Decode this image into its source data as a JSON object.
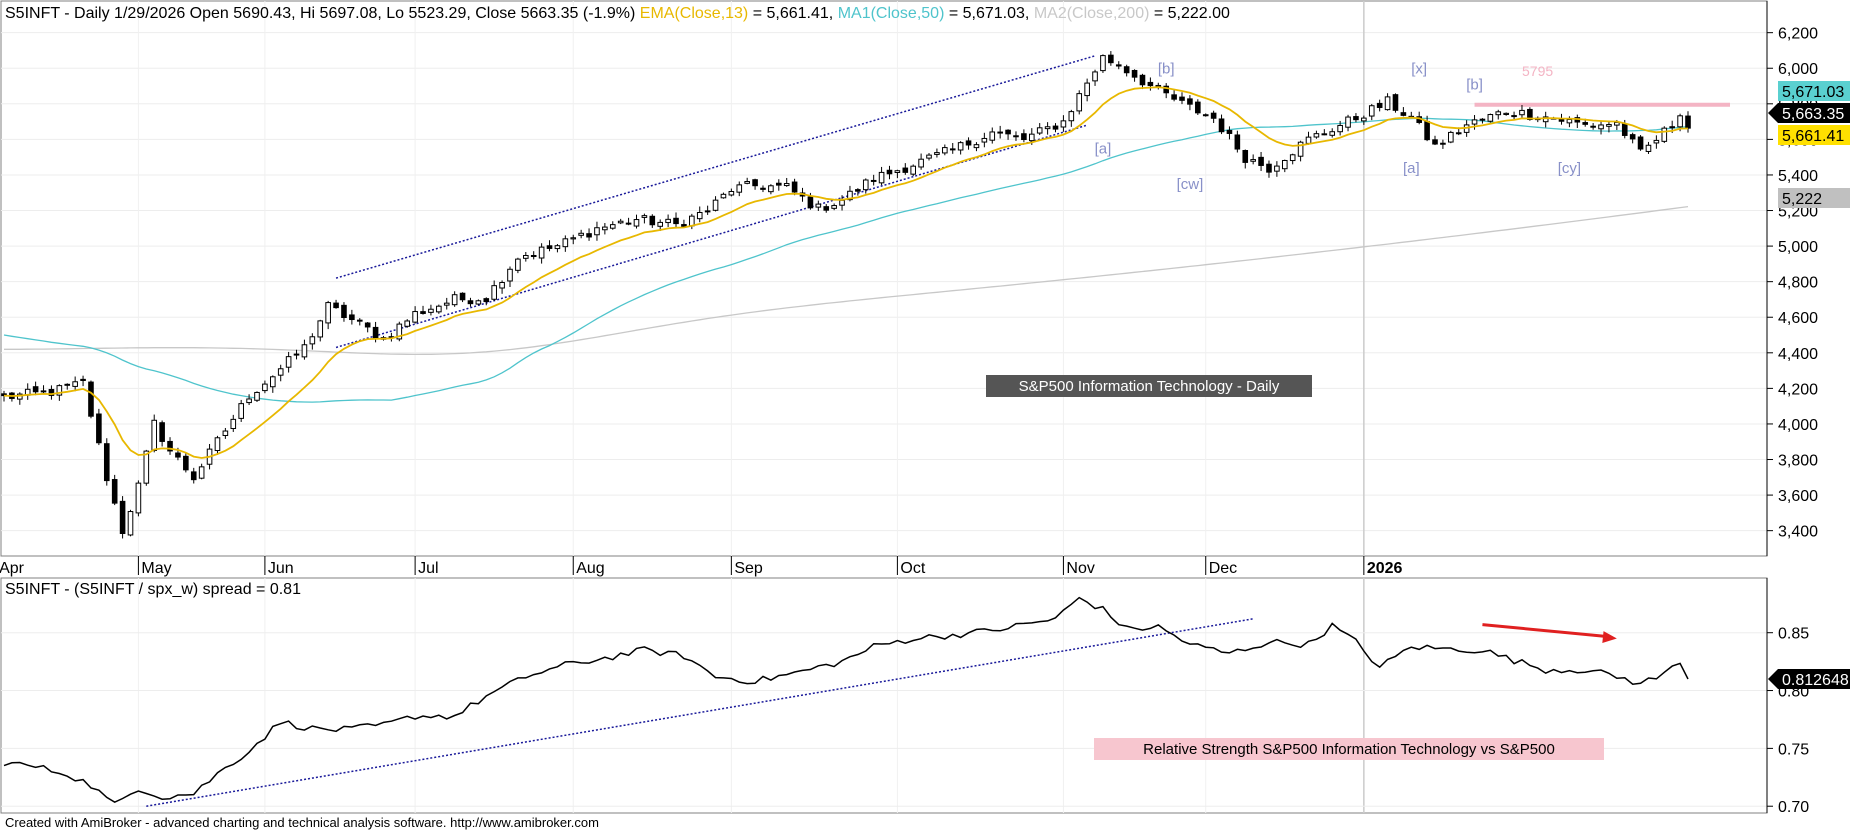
{
  "main_header": {
    "prefix": "S5INFT - Daily 1/29/2026 Open 5690.43, Hi 5697.08, Lo 5523.29, Close 5663.35 (-1.9%)",
    "ema_label": "EMA(Close,13)",
    "ema_value": " = 5,661.41,",
    "ma1_label": "MA1(Close,50)",
    "ma1_value": " = 5,671.03,",
    "ma2_label": "MA2(Close,200)",
    "ma2_value": " = 5,222.00"
  },
  "lower_header": "S5INFT - (S5INFT / spx_w) spread = 0.81",
  "main_caption": "S&P500 Information Technology - Daily",
  "lower_caption": "Relative Strength S&P500 Information Technology vs S&P500",
  "footer": "Created with AmiBroker - advanced charting and technical analysis software. http://www.amibroker.com",
  "resistance_label": "5795",
  "colors": {
    "ema": "#e8b800",
    "ma50": "#4fc4cc",
    "ma200": "#c8c8c8",
    "wave_labels": "#8890c8",
    "resistance": "#f4b4c4",
    "channel": "#1a1a9a",
    "arrow": "#e02020",
    "price_tag": "#000000",
    "ma50_tag": "#5ad0d0",
    "ema_tag": "#ffe000",
    "ma200_tag": "#c0c0c0"
  },
  "chart_data": [
    {
      "type": "candlestick",
      "title": "S&P500 Information Technology - Daily",
      "y_ticks": [
        3400,
        3600,
        3800,
        4000,
        4200,
        4400,
        4600,
        4800,
        5000,
        5200,
        5400,
        5600,
        5800,
        6000,
        6200
      ],
      "y_tick_labels": [
        "3,400",
        "3,600",
        "3,800",
        "4,000",
        "4,200",
        "4,400",
        "4,600",
        "4,800",
        "5,000",
        "5,200",
        "5,400",
        "5,600",
        "5,800",
        "6,000",
        "6,200"
      ],
      "ylim": [
        3280,
        6260
      ],
      "x_months": [
        "Apr",
        "Jun",
        "May",
        "Jul",
        "Aug",
        "Sep",
        "Oct",
        "Nov",
        "Dec",
        "2026"
      ],
      "x_month_index": [
        -1,
        33,
        17,
        52,
        72,
        92,
        113,
        134,
        152,
        172
      ],
      "days": 213,
      "close_path": [
        [
          0,
          4150
        ],
        [
          6,
          4180
        ],
        [
          10,
          4230
        ],
        [
          13,
          3700
        ],
        [
          15,
          3400
        ],
        [
          17,
          3650
        ],
        [
          19,
          4000
        ],
        [
          21,
          3850
        ],
        [
          24,
          3700
        ],
        [
          27,
          3900
        ],
        [
          31,
          4160
        ],
        [
          35,
          4310
        ],
        [
          38,
          4430
        ],
        [
          41,
          4660
        ],
        [
          45,
          4560
        ],
        [
          48,
          4480
        ],
        [
          52,
          4620
        ],
        [
          57,
          4700
        ],
        [
          61,
          4710
        ],
        [
          65,
          4940
        ],
        [
          70,
          5000
        ],
        [
          75,
          5100
        ],
        [
          80,
          5150
        ],
        [
          85,
          5120
        ],
        [
          89,
          5200
        ],
        [
          92,
          5320
        ],
        [
          95,
          5340
        ],
        [
          99,
          5330
        ],
        [
          103,
          5210
        ],
        [
          106,
          5260
        ],
        [
          110,
          5380
        ],
        [
          115,
          5460
        ],
        [
          120,
          5540
        ],
        [
          125,
          5640
        ],
        [
          129,
          5600
        ],
        [
          134,
          5700
        ],
        [
          137,
          5920
        ],
        [
          139,
          6060
        ],
        [
          141,
          6020
        ],
        [
          145,
          5900
        ],
        [
          149,
          5800
        ],
        [
          153,
          5720
        ],
        [
          157,
          5500
        ],
        [
          160,
          5440
        ],
        [
          165,
          5600
        ],
        [
          170,
          5700
        ],
        [
          175,
          5810
        ],
        [
          178,
          5720
        ],
        [
          181,
          5560
        ],
        [
          185,
          5680
        ],
        [
          190,
          5760
        ],
        [
          196,
          5720
        ],
        [
          200,
          5680
        ],
        [
          204,
          5690
        ],
        [
          207,
          5520
        ],
        [
          209,
          5600
        ],
        [
          211,
          5680
        ],
        [
          212,
          5760
        ],
        [
          213,
          5663.35
        ]
      ],
      "ema13_last": 5661.41,
      "ma50_last": 5671.03,
      "ma200_last": 5222.0,
      "ma50_start": 4500,
      "ma200_start": 4420,
      "last_close": 5663.35,
      "resistance": 5795,
      "value_tags": [
        {
          "label": "5,671.03",
          "value": 5671.03
        },
        {
          "label": "5,663.35",
          "value": 5663.35
        },
        {
          "label": "5,661.41",
          "value": 5661.41
        },
        {
          "label": "5,222",
          "value": 5222
        }
      ],
      "wave_labels": [
        {
          "text": "[b]",
          "day": 147,
          "value": 5970
        },
        {
          "text": "[x]",
          "day": 179,
          "value": 5970
        },
        {
          "text": "[b]",
          "day": 186,
          "value": 5880
        },
        {
          "text": "[a]",
          "day": 139,
          "value": 5520
        },
        {
          "text": "[cw]",
          "day": 150,
          "value": 5320
        },
        {
          "text": "[a]",
          "day": 178,
          "value": 5410
        },
        {
          "text": "[cy]",
          "day": 198,
          "value": 5410
        }
      ],
      "channel_upper": [
        [
          42,
          4820
        ],
        [
          138,
          6070
        ]
      ],
      "channel_lower": [
        [
          42,
          4430
        ],
        [
          137,
          5680
        ]
      ]
    },
    {
      "type": "line",
      "title": "Relative Strength S&P500 Information Technology vs S&P500",
      "series": [
        {
          "name": "S5INFT / spx_w spread",
          "last": 0.81
        }
      ],
      "y_ticks": [
        0.7,
        0.75,
        0.8,
        0.85
      ],
      "y_tick_labels": [
        "0.70",
        "0.75",
        "0.80",
        "0.85"
      ],
      "ylim": [
        0.695,
        0.88
      ],
      "value_tag": "0.812648",
      "path": [
        [
          0,
          0.738
        ],
        [
          4,
          0.734
        ],
        [
          8,
          0.728
        ],
        [
          11,
          0.718
        ],
        [
          14,
          0.701
        ],
        [
          17,
          0.716
        ],
        [
          20,
          0.708
        ],
        [
          24,
          0.711
        ],
        [
          27,
          0.728
        ],
        [
          31,
          0.748
        ],
        [
          35,
          0.773
        ],
        [
          39,
          0.767
        ],
        [
          43,
          0.766
        ],
        [
          48,
          0.77
        ],
        [
          52,
          0.778
        ],
        [
          57,
          0.778
        ],
        [
          61,
          0.795
        ],
        [
          66,
          0.812
        ],
        [
          71,
          0.822
        ],
        [
          76,
          0.828
        ],
        [
          81,
          0.835
        ],
        [
          86,
          0.83
        ],
        [
          90,
          0.812
        ],
        [
          95,
          0.808
        ],
        [
          100,
          0.815
        ],
        [
          106,
          0.825
        ],
        [
          110,
          0.838
        ],
        [
          115,
          0.845
        ],
        [
          120,
          0.848
        ],
        [
          125,
          0.852
        ],
        [
          129,
          0.857
        ],
        [
          133,
          0.862
        ],
        [
          136,
          0.88
        ],
        [
          139,
          0.87
        ],
        [
          142,
          0.853
        ],
        [
          146,
          0.855
        ],
        [
          150,
          0.84
        ],
        [
          155,
          0.832
        ],
        [
          160,
          0.842
        ],
        [
          165,
          0.84
        ],
        [
          168,
          0.856
        ],
        [
          171,
          0.842
        ],
        [
          174,
          0.82
        ],
        [
          178,
          0.838
        ],
        [
          182,
          0.836
        ],
        [
          187,
          0.835
        ],
        [
          191,
          0.826
        ],
        [
          195,
          0.818
        ],
        [
          200,
          0.818
        ],
        [
          204,
          0.812
        ],
        [
          207,
          0.806
        ],
        [
          210,
          0.814
        ],
        [
          212,
          0.826
        ],
        [
          213,
          0.812
        ]
      ],
      "trend_line": [
        [
          18,
          0.7
        ],
        [
          158,
          0.862
        ]
      ],
      "arrow": [
        [
          187,
          0.857
        ],
        [
          204,
          0.845
        ]
      ]
    }
  ]
}
